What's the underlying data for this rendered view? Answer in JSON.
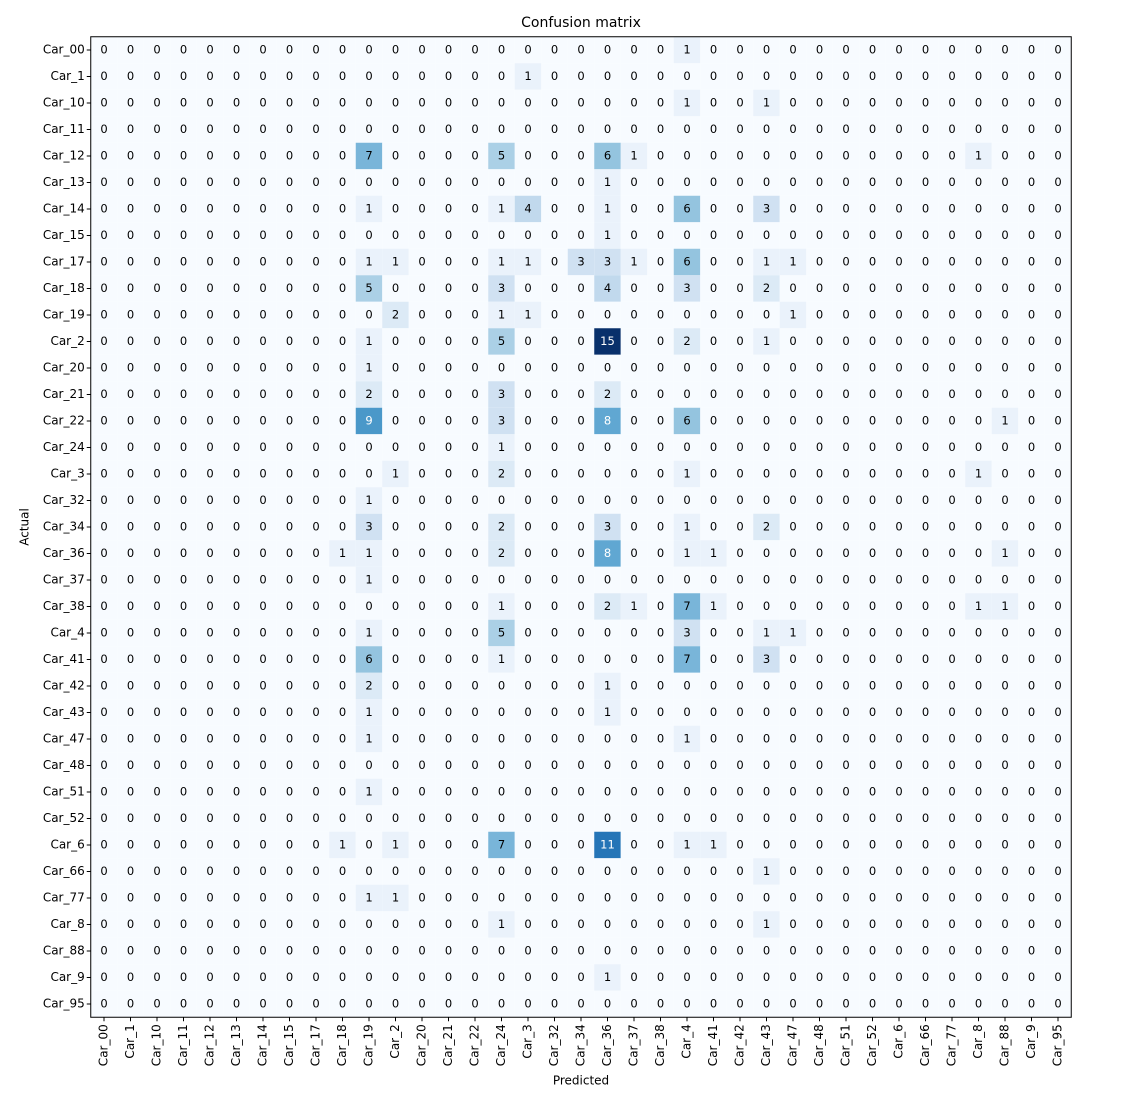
{
  "chart_data": {
    "type": "heatmap",
    "title": "Confusion matrix",
    "xlabel": "Predicted",
    "ylabel": "Actual",
    "categories": [
      "Car_00",
      "Car_1",
      "Car_10",
      "Car_11",
      "Car_12",
      "Car_13",
      "Car_14",
      "Car_15",
      "Car_17",
      "Car_18",
      "Car_19",
      "Car_2",
      "Car_20",
      "Car_21",
      "Car_22",
      "Car_24",
      "Car_3",
      "Car_32",
      "Car_34",
      "Car_36",
      "Car_37",
      "Car_38",
      "Car_4",
      "Car_41",
      "Car_42",
      "Car_43",
      "Car_47",
      "Car_48",
      "Car_51",
      "Car_52",
      "Car_6",
      "Car_66",
      "Car_77",
      "Car_8",
      "Car_88",
      "Car_9",
      "Car_95"
    ],
    "colormap": [
      "#f7fbff",
      "#deebf7",
      "#c6dbef",
      "#9ecae1",
      "#6baed6",
      "#4292c6",
      "#2171b5",
      "#08519c",
      "#08306b"
    ],
    "z": [
      [
        0,
        0,
        0,
        0,
        0,
        0,
        0,
        0,
        0,
        0,
        0,
        0,
        0,
        0,
        0,
        0,
        0,
        0,
        0,
        0,
        0,
        0,
        1,
        0,
        0,
        0,
        0,
        0,
        0,
        0,
        0,
        0,
        0,
        0,
        0,
        0,
        0
      ],
      [
        0,
        0,
        0,
        0,
        0,
        0,
        0,
        0,
        0,
        0,
        0,
        0,
        0,
        0,
        0,
        0,
        1,
        0,
        0,
        0,
        0,
        0,
        0,
        0,
        0,
        0,
        0,
        0,
        0,
        0,
        0,
        0,
        0,
        0,
        0,
        0,
        0
      ],
      [
        0,
        0,
        0,
        0,
        0,
        0,
        0,
        0,
        0,
        0,
        0,
        0,
        0,
        0,
        0,
        0,
        0,
        0,
        0,
        0,
        0,
        0,
        1,
        0,
        0,
        1,
        0,
        0,
        0,
        0,
        0,
        0,
        0,
        0,
        0,
        0,
        0
      ],
      [
        0,
        0,
        0,
        0,
        0,
        0,
        0,
        0,
        0,
        0,
        0,
        0,
        0,
        0,
        0,
        0,
        0,
        0,
        0,
        0,
        0,
        0,
        0,
        0,
        0,
        0,
        0,
        0,
        0,
        0,
        0,
        0,
        0,
        0,
        0,
        0,
        0
      ],
      [
        0,
        0,
        0,
        0,
        0,
        0,
        0,
        0,
        0,
        0,
        7,
        0,
        0,
        0,
        0,
        5,
        0,
        0,
        0,
        6,
        1,
        0,
        0,
        0,
        0,
        0,
        0,
        0,
        0,
        0,
        0,
        0,
        0,
        1,
        0,
        0,
        0
      ],
      [
        0,
        0,
        0,
        0,
        0,
        0,
        0,
        0,
        0,
        0,
        0,
        0,
        0,
        0,
        0,
        0,
        0,
        0,
        0,
        1,
        0,
        0,
        0,
        0,
        0,
        0,
        0,
        0,
        0,
        0,
        0,
        0,
        0,
        0,
        0,
        0,
        0
      ],
      [
        0,
        0,
        0,
        0,
        0,
        0,
        0,
        0,
        0,
        0,
        1,
        0,
        0,
        0,
        0,
        1,
        4,
        0,
        0,
        1,
        0,
        0,
        6,
        0,
        0,
        3,
        0,
        0,
        0,
        0,
        0,
        0,
        0,
        0,
        0,
        0,
        0
      ],
      [
        0,
        0,
        0,
        0,
        0,
        0,
        0,
        0,
        0,
        0,
        0,
        0,
        0,
        0,
        0,
        0,
        0,
        0,
        0,
        1,
        0,
        0,
        0,
        0,
        0,
        0,
        0,
        0,
        0,
        0,
        0,
        0,
        0,
        0,
        0,
        0,
        0
      ],
      [
        0,
        0,
        0,
        0,
        0,
        0,
        0,
        0,
        0,
        0,
        1,
        1,
        0,
        0,
        0,
        1,
        1,
        0,
        3,
        3,
        1,
        0,
        6,
        0,
        0,
        1,
        1,
        0,
        0,
        0,
        0,
        0,
        0,
        0,
        0,
        0,
        0
      ],
      [
        0,
        0,
        0,
        0,
        0,
        0,
        0,
        0,
        0,
        0,
        5,
        0,
        0,
        0,
        0,
        3,
        0,
        0,
        0,
        4,
        0,
        0,
        3,
        0,
        0,
        2,
        0,
        0,
        0,
        0,
        0,
        0,
        0,
        0,
        0,
        0,
        0
      ],
      [
        0,
        0,
        0,
        0,
        0,
        0,
        0,
        0,
        0,
        0,
        0,
        2,
        0,
        0,
        0,
        1,
        1,
        0,
        0,
        0,
        0,
        0,
        0,
        0,
        0,
        0,
        1,
        0,
        0,
        0,
        0,
        0,
        0,
        0,
        0,
        0,
        0
      ],
      [
        0,
        0,
        0,
        0,
        0,
        0,
        0,
        0,
        0,
        0,
        1,
        0,
        0,
        0,
        0,
        5,
        0,
        0,
        0,
        15,
        0,
        0,
        2,
        0,
        0,
        1,
        0,
        0,
        0,
        0,
        0,
        0,
        0,
        0,
        0,
        0,
        0
      ],
      [
        0,
        0,
        0,
        0,
        0,
        0,
        0,
        0,
        0,
        0,
        1,
        0,
        0,
        0,
        0,
        0,
        0,
        0,
        0,
        0,
        0,
        0,
        0,
        0,
        0,
        0,
        0,
        0,
        0,
        0,
        0,
        0,
        0,
        0,
        0,
        0,
        0
      ],
      [
        0,
        0,
        0,
        0,
        0,
        0,
        0,
        0,
        0,
        0,
        2,
        0,
        0,
        0,
        0,
        3,
        0,
        0,
        0,
        2,
        0,
        0,
        0,
        0,
        0,
        0,
        0,
        0,
        0,
        0,
        0,
        0,
        0,
        0,
        0,
        0,
        0
      ],
      [
        0,
        0,
        0,
        0,
        0,
        0,
        0,
        0,
        0,
        0,
        9,
        0,
        0,
        0,
        0,
        3,
        0,
        0,
        0,
        8,
        0,
        0,
        6,
        0,
        0,
        0,
        0,
        0,
        0,
        0,
        0,
        0,
        0,
        0,
        1,
        0,
        0
      ],
      [
        0,
        0,
        0,
        0,
        0,
        0,
        0,
        0,
        0,
        0,
        0,
        0,
        0,
        0,
        0,
        1,
        0,
        0,
        0,
        0,
        0,
        0,
        0,
        0,
        0,
        0,
        0,
        0,
        0,
        0,
        0,
        0,
        0,
        0,
        0,
        0,
        0
      ],
      [
        0,
        0,
        0,
        0,
        0,
        0,
        0,
        0,
        0,
        0,
        0,
        1,
        0,
        0,
        0,
        2,
        0,
        0,
        0,
        0,
        0,
        0,
        1,
        0,
        0,
        0,
        0,
        0,
        0,
        0,
        0,
        0,
        0,
        1,
        0,
        0,
        0
      ],
      [
        0,
        0,
        0,
        0,
        0,
        0,
        0,
        0,
        0,
        0,
        1,
        0,
        0,
        0,
        0,
        0,
        0,
        0,
        0,
        0,
        0,
        0,
        0,
        0,
        0,
        0,
        0,
        0,
        0,
        0,
        0,
        0,
        0,
        0,
        0,
        0,
        0
      ],
      [
        0,
        0,
        0,
        0,
        0,
        0,
        0,
        0,
        0,
        0,
        3,
        0,
        0,
        0,
        0,
        2,
        0,
        0,
        0,
        3,
        0,
        0,
        1,
        0,
        0,
        2,
        0,
        0,
        0,
        0,
        0,
        0,
        0,
        0,
        0,
        0,
        0
      ],
      [
        0,
        0,
        0,
        0,
        0,
        0,
        0,
        0,
        0,
        1,
        1,
        0,
        0,
        0,
        0,
        2,
        0,
        0,
        0,
        8,
        0,
        0,
        1,
        1,
        0,
        0,
        0,
        0,
        0,
        0,
        0,
        0,
        0,
        0,
        1,
        0,
        0
      ],
      [
        0,
        0,
        0,
        0,
        0,
        0,
        0,
        0,
        0,
        0,
        1,
        0,
        0,
        0,
        0,
        0,
        0,
        0,
        0,
        0,
        0,
        0,
        0,
        0,
        0,
        0,
        0,
        0,
        0,
        0,
        0,
        0,
        0,
        0,
        0,
        0,
        0
      ],
      [
        0,
        0,
        0,
        0,
        0,
        0,
        0,
        0,
        0,
        0,
        0,
        0,
        0,
        0,
        0,
        1,
        0,
        0,
        0,
        2,
        1,
        0,
        7,
        1,
        0,
        0,
        0,
        0,
        0,
        0,
        0,
        0,
        0,
        1,
        1,
        0,
        0
      ],
      [
        0,
        0,
        0,
        0,
        0,
        0,
        0,
        0,
        0,
        0,
        1,
        0,
        0,
        0,
        0,
        5,
        0,
        0,
        0,
        0,
        0,
        0,
        3,
        0,
        0,
        1,
        1,
        0,
        0,
        0,
        0,
        0,
        0,
        0,
        0,
        0,
        0
      ],
      [
        0,
        0,
        0,
        0,
        0,
        0,
        0,
        0,
        0,
        0,
        6,
        0,
        0,
        0,
        0,
        1,
        0,
        0,
        0,
        0,
        0,
        0,
        7,
        0,
        0,
        3,
        0,
        0,
        0,
        0,
        0,
        0,
        0,
        0,
        0,
        0,
        0
      ],
      [
        0,
        0,
        0,
        0,
        0,
        0,
        0,
        0,
        0,
        0,
        2,
        0,
        0,
        0,
        0,
        0,
        0,
        0,
        0,
        1,
        0,
        0,
        0,
        0,
        0,
        0,
        0,
        0,
        0,
        0,
        0,
        0,
        0,
        0,
        0,
        0,
        0
      ],
      [
        0,
        0,
        0,
        0,
        0,
        0,
        0,
        0,
        0,
        0,
        1,
        0,
        0,
        0,
        0,
        0,
        0,
        0,
        0,
        1,
        0,
        0,
        0,
        0,
        0,
        0,
        0,
        0,
        0,
        0,
        0,
        0,
        0,
        0,
        0,
        0,
        0
      ],
      [
        0,
        0,
        0,
        0,
        0,
        0,
        0,
        0,
        0,
        0,
        1,
        0,
        0,
        0,
        0,
        0,
        0,
        0,
        0,
        0,
        0,
        0,
        1,
        0,
        0,
        0,
        0,
        0,
        0,
        0,
        0,
        0,
        0,
        0,
        0,
        0,
        0
      ],
      [
        0,
        0,
        0,
        0,
        0,
        0,
        0,
        0,
        0,
        0,
        0,
        0,
        0,
        0,
        0,
        0,
        0,
        0,
        0,
        0,
        0,
        0,
        0,
        0,
        0,
        0,
        0,
        0,
        0,
        0,
        0,
        0,
        0,
        0,
        0,
        0,
        0
      ],
      [
        0,
        0,
        0,
        0,
        0,
        0,
        0,
        0,
        0,
        0,
        1,
        0,
        0,
        0,
        0,
        0,
        0,
        0,
        0,
        0,
        0,
        0,
        0,
        0,
        0,
        0,
        0,
        0,
        0,
        0,
        0,
        0,
        0,
        0,
        0,
        0,
        0
      ],
      [
        0,
        0,
        0,
        0,
        0,
        0,
        0,
        0,
        0,
        0,
        0,
        0,
        0,
        0,
        0,
        0,
        0,
        0,
        0,
        0,
        0,
        0,
        0,
        0,
        0,
        0,
        0,
        0,
        0,
        0,
        0,
        0,
        0,
        0,
        0,
        0,
        0
      ],
      [
        0,
        0,
        0,
        0,
        0,
        0,
        0,
        0,
        0,
        1,
        0,
        1,
        0,
        0,
        0,
        7,
        0,
        0,
        0,
        11,
        0,
        0,
        1,
        1,
        0,
        0,
        0,
        0,
        0,
        0,
        0,
        0,
        0,
        0,
        0,
        0,
        0
      ],
      [
        0,
        0,
        0,
        0,
        0,
        0,
        0,
        0,
        0,
        0,
        0,
        0,
        0,
        0,
        0,
        0,
        0,
        0,
        0,
        0,
        0,
        0,
        0,
        0,
        0,
        1,
        0,
        0,
        0,
        0,
        0,
        0,
        0,
        0,
        0,
        0,
        0
      ],
      [
        0,
        0,
        0,
        0,
        0,
        0,
        0,
        0,
        0,
        0,
        1,
        1,
        0,
        0,
        0,
        0,
        0,
        0,
        0,
        0,
        0,
        0,
        0,
        0,
        0,
        0,
        0,
        0,
        0,
        0,
        0,
        0,
        0,
        0,
        0,
        0,
        0
      ],
      [
        0,
        0,
        0,
        0,
        0,
        0,
        0,
        0,
        0,
        0,
        0,
        0,
        0,
        0,
        0,
        1,
        0,
        0,
        0,
        0,
        0,
        0,
        0,
        0,
        0,
        1,
        0,
        0,
        0,
        0,
        0,
        0,
        0,
        0,
        0,
        0,
        0
      ],
      [
        0,
        0,
        0,
        0,
        0,
        0,
        0,
        0,
        0,
        0,
        0,
        0,
        0,
        0,
        0,
        0,
        0,
        0,
        0,
        0,
        0,
        0,
        0,
        0,
        0,
        0,
        0,
        0,
        0,
        0,
        0,
        0,
        0,
        0,
        0,
        0,
        0
      ],
      [
        0,
        0,
        0,
        0,
        0,
        0,
        0,
        0,
        0,
        0,
        0,
        0,
        0,
        0,
        0,
        0,
        0,
        0,
        0,
        1,
        0,
        0,
        0,
        0,
        0,
        0,
        0,
        0,
        0,
        0,
        0,
        0,
        0,
        0,
        0,
        0,
        0
      ],
      [
        0,
        0,
        0,
        0,
        0,
        0,
        0,
        0,
        0,
        0,
        0,
        0,
        0,
        0,
        0,
        0,
        0,
        0,
        0,
        0,
        0,
        0,
        0,
        0,
        0,
        0,
        0,
        0,
        0,
        0,
        0,
        0,
        0,
        0,
        0,
        0,
        0
      ]
    ]
  }
}
